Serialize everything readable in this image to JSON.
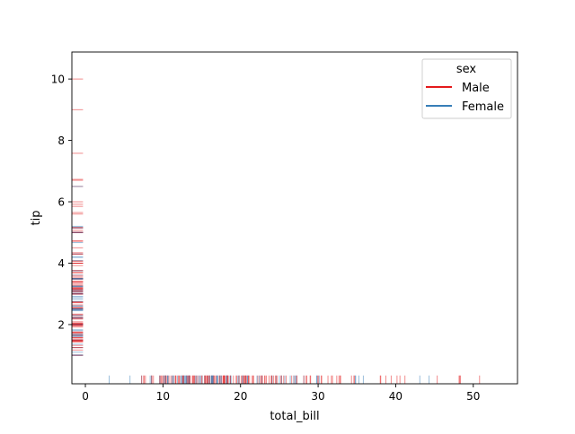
{
  "chart_data": {
    "type": "rug",
    "title": "",
    "xlabel": "total_bill",
    "ylabel": "tip",
    "xlim": [
      -1.74,
      55.7
    ],
    "ylim": [
      0.07,
      10.88
    ],
    "xticks": [
      0,
      10,
      20,
      30,
      40,
      50
    ],
    "yticks": [
      2,
      4,
      6,
      8,
      10
    ],
    "grid": false,
    "legend": {
      "title": "sex",
      "placement": "top-right",
      "entries": [
        "Male",
        "Female"
      ]
    },
    "colors": {
      "Male": "#e41a1c",
      "Female": "#377eb8"
    },
    "alpha": 0.5,
    "rows": [
      [
        16.99,
        1.01,
        "Female"
      ],
      [
        10.34,
        1.66,
        "Male"
      ],
      [
        21.01,
        3.5,
        "Male"
      ],
      [
        23.68,
        3.31,
        "Male"
      ],
      [
        24.59,
        3.61,
        "Female"
      ],
      [
        25.29,
        4.71,
        "Male"
      ],
      [
        8.77,
        2.0,
        "Male"
      ],
      [
        26.88,
        3.12,
        "Male"
      ],
      [
        15.04,
        1.96,
        "Male"
      ],
      [
        14.78,
        3.23,
        "Male"
      ],
      [
        10.27,
        1.71,
        "Male"
      ],
      [
        35.26,
        5.0,
        "Female"
      ],
      [
        15.42,
        1.57,
        "Male"
      ],
      [
        18.43,
        3.0,
        "Male"
      ],
      [
        14.83,
        3.02,
        "Female"
      ],
      [
        21.58,
        3.92,
        "Male"
      ],
      [
        10.33,
        1.67,
        "Female"
      ],
      [
        16.29,
        3.71,
        "Male"
      ],
      [
        16.97,
        3.5,
        "Female"
      ],
      [
        20.65,
        3.35,
        "Male"
      ],
      [
        17.92,
        4.08,
        "Male"
      ],
      [
        20.29,
        2.75,
        "Female"
      ],
      [
        15.77,
        2.23,
        "Female"
      ],
      [
        39.42,
        7.58,
        "Male"
      ],
      [
        19.82,
        3.18,
        "Male"
      ],
      [
        17.81,
        2.34,
        "Male"
      ],
      [
        13.37,
        2.0,
        "Male"
      ],
      [
        12.69,
        2.0,
        "Male"
      ],
      [
        21.7,
        4.3,
        "Male"
      ],
      [
        19.65,
        3.0,
        "Female"
      ],
      [
        9.55,
        1.45,
        "Male"
      ],
      [
        18.35,
        2.5,
        "Male"
      ],
      [
        15.06,
        3.0,
        "Female"
      ],
      [
        20.69,
        2.45,
        "Female"
      ],
      [
        17.78,
        3.27,
        "Male"
      ],
      [
        24.06,
        3.6,
        "Male"
      ],
      [
        16.31,
        2.0,
        "Male"
      ],
      [
        16.93,
        3.07,
        "Female"
      ],
      [
        18.69,
        2.31,
        "Male"
      ],
      [
        31.27,
        5.0,
        "Male"
      ],
      [
        16.04,
        2.24,
        "Male"
      ],
      [
        17.46,
        2.54,
        "Male"
      ],
      [
        13.94,
        3.06,
        "Male"
      ],
      [
        9.68,
        1.32,
        "Male"
      ],
      [
        30.4,
        5.6,
        "Male"
      ],
      [
        18.29,
        3.0,
        "Male"
      ],
      [
        22.23,
        5.0,
        "Male"
      ],
      [
        32.4,
        6.0,
        "Male"
      ],
      [
        28.55,
        2.05,
        "Male"
      ],
      [
        18.04,
        3.0,
        "Male"
      ],
      [
        12.54,
        2.5,
        "Male"
      ],
      [
        10.29,
        2.6,
        "Female"
      ],
      [
        34.81,
        5.2,
        "Female"
      ],
      [
        9.94,
        1.56,
        "Male"
      ],
      [
        25.56,
        4.34,
        "Male"
      ],
      [
        19.49,
        3.51,
        "Male"
      ],
      [
        38.01,
        3.0,
        "Male"
      ],
      [
        26.41,
        1.5,
        "Female"
      ],
      [
        11.24,
        1.76,
        "Male"
      ],
      [
        48.27,
        6.73,
        "Male"
      ],
      [
        20.29,
        3.21,
        "Male"
      ],
      [
        13.81,
        2.0,
        "Male"
      ],
      [
        11.02,
        1.98,
        "Male"
      ],
      [
        18.29,
        3.76,
        "Male"
      ],
      [
        17.59,
        2.64,
        "Male"
      ],
      [
        20.08,
        3.15,
        "Male"
      ],
      [
        16.45,
        2.47,
        "Female"
      ],
      [
        3.07,
        1.0,
        "Female"
      ],
      [
        20.23,
        2.01,
        "Male"
      ],
      [
        15.01,
        2.09,
        "Male"
      ],
      [
        12.02,
        1.97,
        "Male"
      ],
      [
        17.07,
        3.0,
        "Female"
      ],
      [
        26.86,
        3.14,
        "Female"
      ],
      [
        25.28,
        5.0,
        "Female"
      ],
      [
        14.73,
        2.2,
        "Female"
      ],
      [
        10.51,
        1.25,
        "Male"
      ],
      [
        17.92,
        3.08,
        "Male"
      ],
      [
        27.2,
        4.0,
        "Male"
      ],
      [
        22.76,
        3.0,
        "Male"
      ],
      [
        17.29,
        2.71,
        "Male"
      ],
      [
        19.44,
        3.0,
        "Male"
      ],
      [
        16.66,
        3.4,
        "Male"
      ],
      [
        10.07,
        1.83,
        "Female"
      ],
      [
        32.68,
        5.0,
        "Male"
      ],
      [
        15.98,
        2.03,
        "Male"
      ],
      [
        34.83,
        5.17,
        "Female"
      ],
      [
        13.03,
        2.0,
        "Male"
      ],
      [
        18.28,
        4.0,
        "Male"
      ],
      [
        24.71,
        5.85,
        "Male"
      ],
      [
        21.16,
        3.0,
        "Male"
      ],
      [
        28.97,
        3.0,
        "Male"
      ],
      [
        22.49,
        3.5,
        "Male"
      ],
      [
        5.75,
        1.0,
        "Female"
      ],
      [
        16.32,
        4.3,
        "Female"
      ],
      [
        22.75,
        3.25,
        "Female"
      ],
      [
        40.17,
        4.73,
        "Male"
      ],
      [
        27.28,
        4.0,
        "Male"
      ],
      [
        12.03,
        1.5,
        "Male"
      ],
      [
        21.01,
        3.0,
        "Male"
      ],
      [
        12.46,
        1.5,
        "Male"
      ],
      [
        11.35,
        2.5,
        "Female"
      ],
      [
        15.38,
        3.0,
        "Female"
      ],
      [
        44.3,
        2.5,
        "Female"
      ],
      [
        22.42,
        3.48,
        "Female"
      ],
      [
        20.92,
        4.08,
        "Female"
      ],
      [
        15.36,
        1.64,
        "Male"
      ],
      [
        20.49,
        4.06,
        "Male"
      ],
      [
        25.21,
        4.29,
        "Male"
      ],
      [
        18.24,
        3.76,
        "Male"
      ],
      [
        14.31,
        4.0,
        "Female"
      ],
      [
        14.0,
        3.0,
        "Male"
      ],
      [
        7.25,
        1.0,
        "Female"
      ],
      [
        38.07,
        4.0,
        "Male"
      ],
      [
        23.95,
        2.55,
        "Male"
      ],
      [
        25.71,
        4.0,
        "Female"
      ],
      [
        17.31,
        3.5,
        "Female"
      ],
      [
        29.93,
        5.07,
        "Male"
      ],
      [
        10.65,
        1.5,
        "Female"
      ],
      [
        12.43,
        1.8,
        "Female"
      ],
      [
        24.08,
        2.92,
        "Female"
      ],
      [
        11.69,
        2.31,
        "Male"
      ],
      [
        13.42,
        1.68,
        "Female"
      ],
      [
        14.26,
        2.5,
        "Male"
      ],
      [
        15.95,
        2.0,
        "Male"
      ],
      [
        12.48,
        2.52,
        "Female"
      ],
      [
        29.8,
        4.2,
        "Female"
      ],
      [
        8.52,
        1.48,
        "Male"
      ],
      [
        14.52,
        2.0,
        "Female"
      ],
      [
        11.38,
        2.0,
        "Female"
      ],
      [
        22.82,
        2.18,
        "Male"
      ],
      [
        19.08,
        1.5,
        "Male"
      ],
      [
        20.27,
        2.83,
        "Female"
      ],
      [
        11.17,
        1.5,
        "Female"
      ],
      [
        12.26,
        2.0,
        "Female"
      ],
      [
        18.26,
        3.25,
        "Female"
      ],
      [
        8.51,
        1.25,
        "Female"
      ],
      [
        10.33,
        2.0,
        "Female"
      ],
      [
        14.15,
        2.0,
        "Female"
      ],
      [
        16.0,
        2.0,
        "Male"
      ],
      [
        13.16,
        2.75,
        "Female"
      ],
      [
        17.47,
        3.5,
        "Female"
      ],
      [
        34.3,
        6.7,
        "Male"
      ],
      [
        41.19,
        5.0,
        "Male"
      ],
      [
        27.05,
        5.0,
        "Female"
      ],
      [
        16.43,
        2.3,
        "Female"
      ],
      [
        8.35,
        1.5,
        "Female"
      ],
      [
        18.64,
        1.36,
        "Female"
      ],
      [
        11.87,
        1.63,
        "Female"
      ],
      [
        9.78,
        1.73,
        "Male"
      ],
      [
        7.51,
        2.0,
        "Male"
      ],
      [
        14.07,
        2.5,
        "Male"
      ],
      [
        13.13,
        2.0,
        "Male"
      ],
      [
        17.26,
        2.74,
        "Male"
      ],
      [
        24.55,
        2.0,
        "Male"
      ],
      [
        19.77,
        2.0,
        "Male"
      ],
      [
        29.85,
        5.14,
        "Female"
      ],
      [
        48.17,
        5.0,
        "Male"
      ],
      [
        25.0,
        3.75,
        "Female"
      ],
      [
        13.39,
        2.61,
        "Female"
      ],
      [
        16.49,
        2.0,
        "Male"
      ],
      [
        21.5,
        3.5,
        "Male"
      ],
      [
        12.66,
        2.5,
        "Male"
      ],
      [
        16.21,
        2.0,
        "Female"
      ],
      [
        13.81,
        2.0,
        "Male"
      ],
      [
        17.51,
        3.0,
        "Female"
      ],
      [
        24.52,
        3.48,
        "Male"
      ],
      [
        20.76,
        2.24,
        "Male"
      ],
      [
        31.71,
        4.5,
        "Male"
      ],
      [
        10.59,
        1.61,
        "Female"
      ],
      [
        10.63,
        2.0,
        "Female"
      ],
      [
        50.81,
        10.0,
        "Male"
      ],
      [
        15.81,
        3.16,
        "Male"
      ],
      [
        7.25,
        5.15,
        "Male"
      ],
      [
        31.85,
        3.18,
        "Male"
      ],
      [
        16.82,
        4.0,
        "Male"
      ],
      [
        32.9,
        3.11,
        "Male"
      ],
      [
        17.89,
        2.0,
        "Male"
      ],
      [
        14.48,
        2.0,
        "Male"
      ],
      [
        9.6,
        4.0,
        "Female"
      ],
      [
        34.63,
        3.55,
        "Male"
      ],
      [
        34.65,
        3.68,
        "Male"
      ],
      [
        23.33,
        5.65,
        "Male"
      ],
      [
        45.35,
        3.5,
        "Male"
      ],
      [
        23.17,
        6.5,
        "Male"
      ],
      [
        40.55,
        3.0,
        "Male"
      ],
      [
        20.69,
        5.0,
        "Male"
      ],
      [
        20.9,
        3.5,
        "Female"
      ],
      [
        30.46,
        2.0,
        "Male"
      ],
      [
        18.15,
        3.5,
        "Female"
      ],
      [
        23.1,
        4.0,
        "Male"
      ],
      [
        15.69,
        1.5,
        "Male"
      ],
      [
        19.81,
        4.19,
        "Female"
      ],
      [
        28.44,
        2.56,
        "Male"
      ],
      [
        15.48,
        2.02,
        "Male"
      ],
      [
        16.58,
        4.0,
        "Male"
      ],
      [
        7.56,
        1.44,
        "Male"
      ],
      [
        10.34,
        2.0,
        "Male"
      ],
      [
        43.11,
        5.0,
        "Female"
      ],
      [
        13.0,
        2.0,
        "Female"
      ],
      [
        13.51,
        2.0,
        "Male"
      ],
      [
        18.71,
        4.0,
        "Male"
      ],
      [
        12.74,
        2.01,
        "Female"
      ],
      [
        13.0,
        2.0,
        "Female"
      ],
      [
        16.4,
        2.5,
        "Female"
      ],
      [
        20.53,
        4.0,
        "Male"
      ],
      [
        16.47,
        3.23,
        "Female"
      ],
      [
        26.59,
        3.41,
        "Male"
      ],
      [
        38.73,
        3.0,
        "Male"
      ],
      [
        24.27,
        2.03,
        "Male"
      ],
      [
        12.76,
        2.23,
        "Female"
      ],
      [
        30.06,
        2.0,
        "Male"
      ],
      [
        25.89,
        5.16,
        "Male"
      ],
      [
        48.33,
        9.0,
        "Male"
      ],
      [
        13.27,
        2.5,
        "Female"
      ],
      [
        28.17,
        6.5,
        "Female"
      ],
      [
        12.9,
        1.1,
        "Female"
      ],
      [
        28.15,
        3.0,
        "Male"
      ],
      [
        11.59,
        1.5,
        "Male"
      ],
      [
        7.74,
        1.44,
        "Male"
      ],
      [
        30.14,
        3.09,
        "Female"
      ],
      [
        12.16,
        2.2,
        "Male"
      ],
      [
        13.42,
        3.48,
        "Female"
      ],
      [
        8.58,
        1.92,
        "Male"
      ],
      [
        15.98,
        3.0,
        "Female"
      ],
      [
        13.42,
        1.58,
        "Male"
      ],
      [
        16.27,
        2.5,
        "Female"
      ],
      [
        10.09,
        2.0,
        "Female"
      ],
      [
        20.45,
        3.0,
        "Male"
      ],
      [
        13.28,
        2.72,
        "Male"
      ],
      [
        22.12,
        2.88,
        "Female"
      ],
      [
        24.01,
        2.0,
        "Male"
      ],
      [
        15.69,
        3.0,
        "Male"
      ],
      [
        11.61,
        3.39,
        "Male"
      ],
      [
        10.77,
        1.47,
        "Male"
      ],
      [
        15.53,
        3.0,
        "Male"
      ],
      [
        10.07,
        1.25,
        "Male"
      ],
      [
        12.6,
        1.0,
        "Male"
      ],
      [
        32.83,
        1.17,
        "Male"
      ],
      [
        35.83,
        4.67,
        "Female"
      ],
      [
        29.03,
        5.92,
        "Male"
      ],
      [
        27.18,
        2.0,
        "Female"
      ],
      [
        22.67,
        2.0,
        "Male"
      ],
      [
        17.82,
        1.75,
        "Male"
      ],
      [
        18.78,
        3.0,
        "Female"
      ]
    ]
  }
}
